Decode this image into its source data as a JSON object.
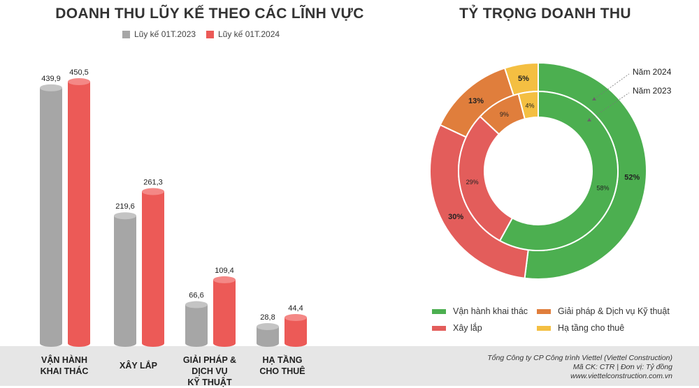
{
  "bar_chart": {
    "title": "DOANH THU LŨY KẾ THEO CÁC LĨNH VỰC",
    "legend": [
      "Lũy kế 01T.2023",
      "Lũy kế 01T.2024"
    ],
    "category_labels": [
      [
        "VẬN HÀNH",
        "KHAI THÁC"
      ],
      [
        "XÂY LẮP"
      ],
      [
        "GIẢI PHÁP &",
        "DỊCH VỤ",
        "KỸ THUẬT"
      ],
      [
        "HẠ TẦNG",
        "CHO THUÊ"
      ]
    ],
    "colors": {
      "2023": "#a6a6a6",
      "2024": "#ec5a57"
    }
  },
  "donut_chart": {
    "title": "TỶ TRỌNG DOANH THU",
    "ring_labels": [
      "Năm 2024",
      "Năm 2023"
    ],
    "legend": [
      "Vận hành khai thác",
      "Giải pháp & Dịch vụ Kỹ thuật",
      "Xây lắp",
      "Hạ tầng cho thuê"
    ],
    "colors": {
      "van_hanh": "#4caf50",
      "xay_lap": "#e35d5b",
      "giai_phap": "#e07e3c",
      "ha_tang": "#f4bf42"
    }
  },
  "footer": {
    "line1": "Tổng Công ty CP Công trình Viettel (Viettel Construction)",
    "line2": "Mã CK: CTR  |  Đơn vị: Tỷ đồng",
    "line3": "www.viettelconstruction.com.vn"
  },
  "chart_data": [
    {
      "type": "bar",
      "title": "DOANH THU LŨY KẾ THEO CÁC LĨNH VỰC",
      "categories": [
        "VẬN HÀNH KHAI THÁC",
        "XÂY LẮP",
        "GIẢI PHÁP & DỊCH VỤ KỸ THUẬT",
        "HẠ TẦNG CHO THUÊ"
      ],
      "series": [
        {
          "name": "Lũy kế 01T.2023",
          "values": [
            439.9,
            219.6,
            66.6,
            28.8
          ],
          "labels": [
            "439,9",
            "219,6",
            "66,6",
            "28,8"
          ]
        },
        {
          "name": "Lũy kế 01T.2024",
          "values": [
            450.5,
            261.3,
            109.4,
            44.4
          ],
          "labels": [
            "450,5",
            "261,3",
            "109,4",
            "44,4"
          ]
        }
      ],
      "xlabel": "",
      "ylabel": "",
      "ylim": [
        0,
        470
      ]
    },
    {
      "type": "pie",
      "title": "TỶ TRỌNG DOANH THU",
      "categories": [
        "Vận hành khai thác",
        "Xây lắp",
        "Giải pháp & Dịch vụ Kỹ thuật",
        "Hạ tầng cho thuê"
      ],
      "series": [
        {
          "name": "Năm 2024",
          "values": [
            52,
            30,
            13,
            5
          ],
          "labels": [
            "52%",
            "30%",
            "13%",
            "5%"
          ]
        },
        {
          "name": "Năm 2023",
          "values": [
            58,
            29,
            9,
            4
          ],
          "labels": [
            "58%",
            "29%",
            "9%",
            "4%"
          ]
        }
      ]
    }
  ]
}
